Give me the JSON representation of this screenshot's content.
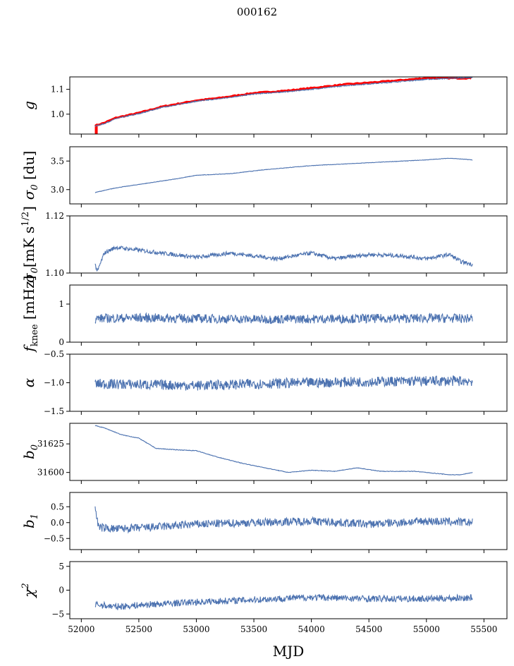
{
  "title": "000162",
  "chart_data": {
    "type": "line",
    "title": "000162",
    "xlabel": "MJD",
    "xlim": [
      51900,
      55700
    ],
    "xticks": [
      52000,
      52500,
      53000,
      53500,
      54000,
      54500,
      55000,
      55500
    ],
    "series_color": "#4c72b0",
    "highlight_color": "#ff0000",
    "panels": [
      {
        "ylabel": "g",
        "ylim": [
          0.92,
          1.15
        ],
        "yticks": [
          1.0,
          1.1
        ],
        "ytick_labels": [
          "1.0",
          "1.1"
        ],
        "noise": 0.002,
        "series": [
          {
            "name": "",
            "color": "#ff0000",
            "x": [
              52120,
              52130,
              52200,
              52300,
              52500,
              52700,
              53000,
              53200,
              53500,
              53800,
              54000,
              54300,
              54600,
              55000,
              55400
            ],
            "y": [
              0.955,
              0.955,
              0.965,
              0.985,
              1.005,
              1.03,
              1.055,
              1.065,
              1.085,
              1.095,
              1.105,
              1.12,
              1.13,
              1.145,
              1.145
            ]
          },
          {
            "name": "",
            "color": "#4c72b0",
            "x": [
              52120,
              52200,
              52300,
              52500,
              52700,
              53000,
              53200,
              53500,
              53800,
              54000,
              54300,
              54600,
              55000,
              55400
            ],
            "y": [
              0.952,
              0.962,
              0.982,
              1.002,
              1.027,
              1.052,
              1.062,
              1.081,
              1.091,
              1.1,
              1.115,
              1.125,
              1.14,
              1.148
            ]
          }
        ]
      },
      {
        "ylabel": "σ0 [du]",
        "ylim": [
          2.75,
          3.75
        ],
        "yticks": [
          3.0,
          3.5
        ],
        "ytick_labels": [
          "3.0",
          "3.5"
        ],
        "noise": 0.004,
        "series": [
          {
            "name": "",
            "color": "#4c72b0",
            "x": [
              52120,
              52300,
              52600,
              52800,
              53000,
              53300,
              53600,
              54000,
              54300,
              54600,
              55000,
              55200,
              55400
            ],
            "y": [
              2.95,
              3.03,
              3.12,
              3.18,
              3.25,
              3.28,
              3.35,
              3.42,
              3.45,
              3.48,
              3.52,
              3.55,
              3.52
            ]
          }
        ]
      },
      {
        "ylabel": "σ0[mK s1/2]",
        "ylim": [
          1.1,
          1.12
        ],
        "yticks": [
          1.1,
          1.12
        ],
        "ytick_labels": [
          "1.10",
          "1.12"
        ],
        "noise": 0.0007,
        "series": [
          {
            "name": "",
            "color": "#4c72b0",
            "x": [
              52120,
              52140,
              52200,
              52300,
              52500,
              52700,
              53000,
              53300,
              53500,
              53700,
              54000,
              54200,
              54500,
              54800,
              55000,
              55200,
              55300,
              55400
            ],
            "y": [
              1.103,
              1.1005,
              1.107,
              1.109,
              1.108,
              1.107,
              1.1055,
              1.107,
              1.106,
              1.105,
              1.107,
              1.105,
              1.1065,
              1.106,
              1.105,
              1.1065,
              1.104,
              1.103
            ]
          }
        ]
      },
      {
        "ylabel": "fknee [mHz]",
        "ylim": [
          0,
          1.5
        ],
        "yticks": [
          0,
          1
        ],
        "ytick_labels": [
          "0",
          "1"
        ],
        "noise": 0.12,
        "series": [
          {
            "name": "",
            "color": "#4c72b0",
            "x": [
              52120,
              52500,
              53000,
              53500,
              54000,
              54500,
              55000,
              55400
            ],
            "y": [
              0.62,
              0.64,
              0.62,
              0.6,
              0.61,
              0.62,
              0.63,
              0.62
            ]
          }
        ]
      },
      {
        "ylabel": "α",
        "ylim": [
          -1.5,
          -0.5
        ],
        "yticks": [
          -1.5,
          -1.0,
          -0.5
        ],
        "ytick_labels": [
          "−1.5",
          "−1.0",
          "−0.5"
        ],
        "noise": 0.09,
        "series": [
          {
            "name": "",
            "color": "#4c72b0",
            "x": [
              52120,
              52500,
              53000,
              53500,
              54000,
              54500,
              55000,
              55400
            ],
            "y": [
              -1.02,
              -1.03,
              -1.05,
              -1.02,
              -1.0,
              -0.98,
              -0.97,
              -0.97
            ]
          }
        ]
      },
      {
        "ylabel": "b0",
        "ylim": [
          31593,
          31643
        ],
        "yticks": [
          31600,
          31625
        ],
        "ytick_labels": [
          "31600",
          "31625"
        ],
        "noise": 0.25,
        "series": [
          {
            "name": "",
            "color": "#4c72b0",
            "x": [
              52120,
              52200,
              52350,
              52500,
              52650,
              52800,
              53000,
              53200,
              53400,
              53600,
              53800,
              54000,
              54200,
              54400,
              54600,
              54900,
              55100,
              55200,
              55300,
              55400
            ],
            "y": [
              31641,
              31639,
              31633,
              31630,
              31621,
              31620,
              31619,
              31613,
              31608,
              31604,
              31600,
              31602,
              31601,
              31604,
              31601,
              31601,
              31599,
              31598,
              31598,
              31600
            ]
          }
        ]
      },
      {
        "ylabel": "b1",
        "ylim": [
          -0.85,
          0.95
        ],
        "yticks": [
          -0.5,
          0.0,
          0.5
        ],
        "ytick_labels": [
          "−0.5",
          "0.0",
          "0.5"
        ],
        "noise": 0.13,
        "series": [
          {
            "name": "",
            "color": "#4c72b0",
            "x": [
              52120,
              52150,
              52300,
              52600,
              53000,
              53500,
              54000,
              54500,
              55000,
              55400
            ],
            "y": [
              0.5,
              -0.15,
              -0.2,
              -0.15,
              -0.05,
              0.0,
              0.05,
              -0.05,
              0.05,
              0.0
            ]
          }
        ]
      },
      {
        "ylabel": "χ2",
        "ylim": [
          -6,
          6
        ],
        "yticks": [
          -5,
          0,
          5
        ],
        "ytick_labels": [
          "−5",
          "0",
          "5"
        ],
        "noise": 0.7,
        "series": [
          {
            "name": "",
            "color": "#4c72b0",
            "x": [
              52120,
              52300,
              52600,
              53000,
              53500,
              54000,
              54500,
              55000,
              55400
            ],
            "y": [
              -3.0,
              -3.5,
              -3.0,
              -2.5,
              -2.0,
              -1.5,
              -1.8,
              -1.8,
              -1.6
            ]
          }
        ]
      }
    ]
  }
}
